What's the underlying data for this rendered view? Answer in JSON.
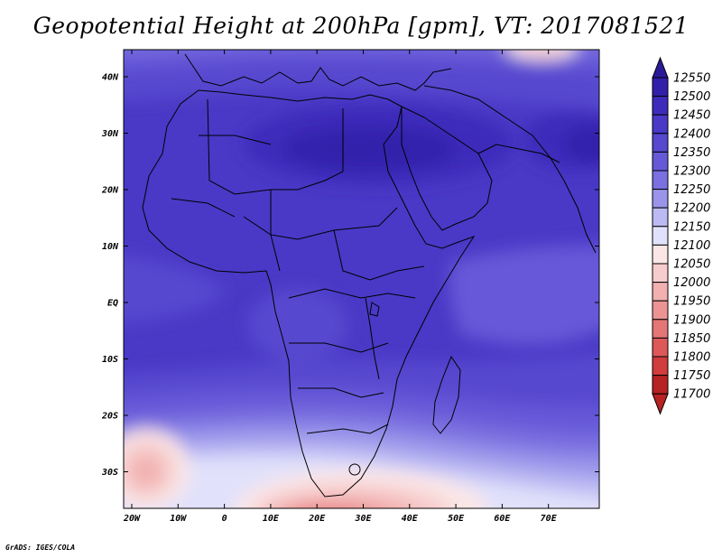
{
  "title": "Geopotential Height at 200hPa [gpm], VT: 2017081521",
  "credit": "GrADS: IGES/COLA",
  "map": {
    "lat_labels": [
      "40N",
      "30N",
      "20N",
      "10N",
      "EQ",
      "10S",
      "20S",
      "30S"
    ],
    "lon_labels": [
      "20W",
      "10W",
      "0",
      "10E",
      "20E",
      "30E",
      "40E",
      "50E",
      "60E",
      "70E"
    ]
  },
  "colorbar": {
    "unit": "gpm",
    "levels": [
      12550,
      12500,
      12450,
      12400,
      12350,
      12300,
      12250,
      12200,
      12150,
      12100,
      12050,
      12000,
      11950,
      11900,
      11850,
      11800,
      11750,
      11700
    ],
    "colors": [
      "#2b1b99",
      "#3220ab",
      "#3d2cbb",
      "#4939c6",
      "#5648cf",
      "#6659d8",
      "#7a70e0",
      "#9a95ea",
      "#bcbaf3",
      "#e1e1fb",
      "#fbe6e6",
      "#f7cccc",
      "#f2b0b0",
      "#ec9494",
      "#e57676",
      "#dd5858",
      "#d13c3c",
      "#b72222"
    ]
  }
}
